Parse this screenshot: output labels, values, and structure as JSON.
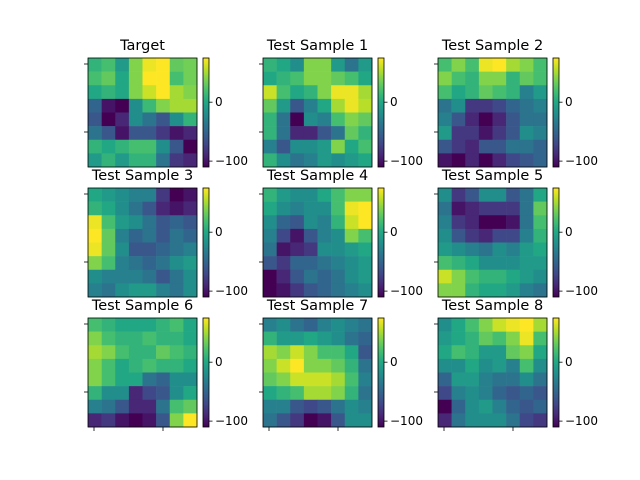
{
  "colors": {
    "viridis_stops": [
      "#440154",
      "#482475",
      "#414487",
      "#355f8d",
      "#2a788e",
      "#21918c",
      "#22a884",
      "#44bf70",
      "#7ad151",
      "#bddf26",
      "#fde725"
    ],
    "frame": "#000000",
    "background": "#ffffff"
  },
  "chart_data": {
    "type": "heatmap",
    "grid": {
      "rows": 3,
      "cols": 3
    },
    "cells_per_side": 8,
    "value_range": [
      -110,
      75
    ],
    "colorbar_ticks": [
      {
        "value": 0,
        "label": "0"
      },
      {
        "value": -100,
        "label": "−100"
      }
    ],
    "colormap": "viridis",
    "panels": [
      {
        "title": "Target",
        "z": [
          [
            10,
            20,
            -10,
            40,
            70,
            75,
            30,
            35
          ],
          [
            20,
            30,
            0,
            40,
            75,
            75,
            20,
            35
          ],
          [
            0,
            10,
            0,
            40,
            60,
            75,
            50,
            40
          ],
          [
            -50,
            -100,
            -110,
            -20,
            15,
            40,
            50,
            50
          ],
          [
            -60,
            -110,
            -90,
            -20,
            -40,
            -60,
            -20,
            10
          ],
          [
            -40,
            -60,
            -100,
            -60,
            -60,
            -80,
            -100,
            -90
          ],
          [
            10,
            0,
            10,
            20,
            20,
            -20,
            -60,
            -110
          ],
          [
            -10,
            10,
            -10,
            10,
            10,
            -40,
            -80,
            -90
          ]
        ]
      },
      {
        "title": "Test Sample 1",
        "z": [
          [
            10,
            0,
            -20,
            40,
            40,
            -10,
            -40,
            -10
          ],
          [
            0,
            10,
            20,
            40,
            40,
            30,
            20,
            0
          ],
          [
            60,
            20,
            0,
            10,
            40,
            70,
            70,
            50
          ],
          [
            30,
            -10,
            -60,
            -30,
            0,
            50,
            70,
            55
          ],
          [
            10,
            -40,
            -110,
            -20,
            -30,
            20,
            40,
            30
          ],
          [
            10,
            -40,
            -90,
            -90,
            -60,
            -40,
            30,
            10
          ],
          [
            -30,
            -60,
            -20,
            -20,
            -10,
            40,
            0,
            20
          ],
          [
            10,
            -20,
            -40,
            -30,
            -10,
            -20,
            -10,
            0
          ]
        ]
      },
      {
        "title": "Test Sample 2",
        "z": [
          [
            20,
            40,
            20,
            70,
            75,
            50,
            40,
            20
          ],
          [
            40,
            20,
            10,
            40,
            40,
            10,
            30,
            20
          ],
          [
            20,
            0,
            10,
            30,
            20,
            10,
            -30,
            -10
          ],
          [
            -40,
            -20,
            -80,
            -80,
            -70,
            -50,
            -40,
            -30
          ],
          [
            -30,
            -60,
            -90,
            -110,
            -90,
            -60,
            -40,
            -40
          ],
          [
            -10,
            -80,
            -80,
            -100,
            -80,
            -60,
            -20,
            -30
          ],
          [
            -60,
            -80,
            -90,
            -60,
            -60,
            -40,
            -40,
            -50
          ],
          [
            -100,
            -110,
            -90,
            -110,
            -90,
            -70,
            -60,
            -50
          ]
        ]
      },
      {
        "title": "Test Sample 3",
        "z": [
          [
            0,
            -10,
            -20,
            -30,
            -30,
            -80,
            -110,
            -100
          ],
          [
            10,
            0,
            -20,
            -40,
            -60,
            -90,
            -100,
            -90
          ],
          [
            70,
            20,
            -10,
            -20,
            -40,
            -60,
            -50,
            -60
          ],
          [
            75,
            30,
            -30,
            -50,
            -40,
            -60,
            -40,
            -50
          ],
          [
            70,
            30,
            -20,
            -60,
            -60,
            -50,
            -40,
            -30
          ],
          [
            40,
            20,
            -30,
            -40,
            -50,
            -40,
            -20,
            -10
          ],
          [
            -20,
            -30,
            -30,
            -30,
            -40,
            -60,
            -40,
            -20
          ],
          [
            -30,
            -40,
            -20,
            -10,
            -10,
            -30,
            -40,
            -20
          ]
        ]
      },
      {
        "title": "Test Sample 4",
        "z": [
          [
            10,
            -10,
            -20,
            -20,
            0,
            20,
            40,
            40
          ],
          [
            0,
            -20,
            -30,
            -20,
            -20,
            20,
            70,
            75
          ],
          [
            -20,
            -50,
            -60,
            -20,
            -30,
            10,
            60,
            75
          ],
          [
            -30,
            -70,
            -100,
            -60,
            -30,
            -20,
            40,
            20
          ],
          [
            -40,
            -100,
            -90,
            -80,
            -20,
            -20,
            -10,
            0
          ],
          [
            -60,
            -80,
            -50,
            -50,
            -40,
            -30,
            -20,
            -10
          ],
          [
            -110,
            -90,
            -60,
            -40,
            -50,
            -40,
            -20,
            -10
          ],
          [
            -110,
            -100,
            -80,
            -60,
            -50,
            -40,
            -30,
            -20
          ]
        ]
      },
      {
        "title": "Test Sample 5",
        "z": [
          [
            -20,
            -80,
            -60,
            -20,
            -20,
            -60,
            -40,
            0
          ],
          [
            -40,
            -100,
            -90,
            -80,
            -80,
            -80,
            -40,
            30
          ],
          [
            -30,
            -80,
            -90,
            -110,
            -110,
            -100,
            -40,
            20
          ],
          [
            -20,
            -60,
            -80,
            -90,
            -70,
            -70,
            -30,
            10
          ],
          [
            -10,
            -20,
            -30,
            -40,
            -20,
            -30,
            -10,
            0
          ],
          [
            20,
            10,
            0,
            -20,
            -20,
            -20,
            -10,
            -10
          ],
          [
            60,
            40,
            20,
            10,
            10,
            0,
            -10,
            -20
          ],
          [
            40,
            40,
            10,
            0,
            0,
            -10,
            -30,
            -40
          ]
        ]
      },
      {
        "title": "Test Sample 6",
        "z": [
          [
            20,
            10,
            0,
            0,
            0,
            10,
            20,
            0
          ],
          [
            40,
            20,
            10,
            10,
            20,
            10,
            10,
            0
          ],
          [
            50,
            40,
            20,
            10,
            10,
            30,
            20,
            10
          ],
          [
            40,
            20,
            0,
            10,
            20,
            10,
            10,
            0
          ],
          [
            40,
            20,
            0,
            0,
            -40,
            -50,
            -20,
            -20
          ],
          [
            10,
            -20,
            -20,
            -90,
            -70,
            -60,
            -20,
            0
          ],
          [
            -30,
            -40,
            -60,
            -90,
            -90,
            -40,
            20,
            30
          ],
          [
            -90,
            -80,
            -100,
            -110,
            -100,
            -60,
            40,
            75
          ]
        ]
      },
      {
        "title": "Test Sample 7",
        "z": [
          [
            -30,
            -20,
            -40,
            -50,
            -30,
            -20,
            -30,
            -40
          ],
          [
            10,
            -10,
            -10,
            0,
            -10,
            -20,
            -40,
            -50
          ],
          [
            50,
            40,
            60,
            40,
            20,
            20,
            0,
            -60
          ],
          [
            40,
            60,
            75,
            40,
            40,
            30,
            10,
            -40
          ],
          [
            30,
            40,
            60,
            60,
            60,
            50,
            20,
            -30
          ],
          [
            0,
            10,
            20,
            50,
            50,
            40,
            10,
            -40
          ],
          [
            -30,
            -30,
            -60,
            -70,
            -60,
            -40,
            -20,
            -30
          ],
          [
            -40,
            -60,
            -80,
            -110,
            -100,
            -60,
            -20,
            -20
          ]
        ]
      },
      {
        "title": "Test Sample 8",
        "z": [
          [
            -20,
            0,
            20,
            40,
            60,
            70,
            75,
            50
          ],
          [
            -10,
            0,
            10,
            30,
            20,
            40,
            70,
            20
          ],
          [
            0,
            20,
            10,
            -10,
            -10,
            30,
            40,
            0
          ],
          [
            -20,
            -20,
            0,
            -20,
            -10,
            -30,
            20,
            -20
          ],
          [
            -50,
            -10,
            -10,
            -30,
            -40,
            -40,
            -20,
            -40
          ],
          [
            -70,
            -30,
            -20,
            -30,
            -50,
            -60,
            -50,
            -60
          ],
          [
            -110,
            -50,
            -20,
            -10,
            -30,
            -50,
            -60,
            -50
          ],
          [
            -90,
            -40,
            -20,
            -20,
            -20,
            -40,
            -70,
            -80
          ]
        ]
      }
    ]
  }
}
